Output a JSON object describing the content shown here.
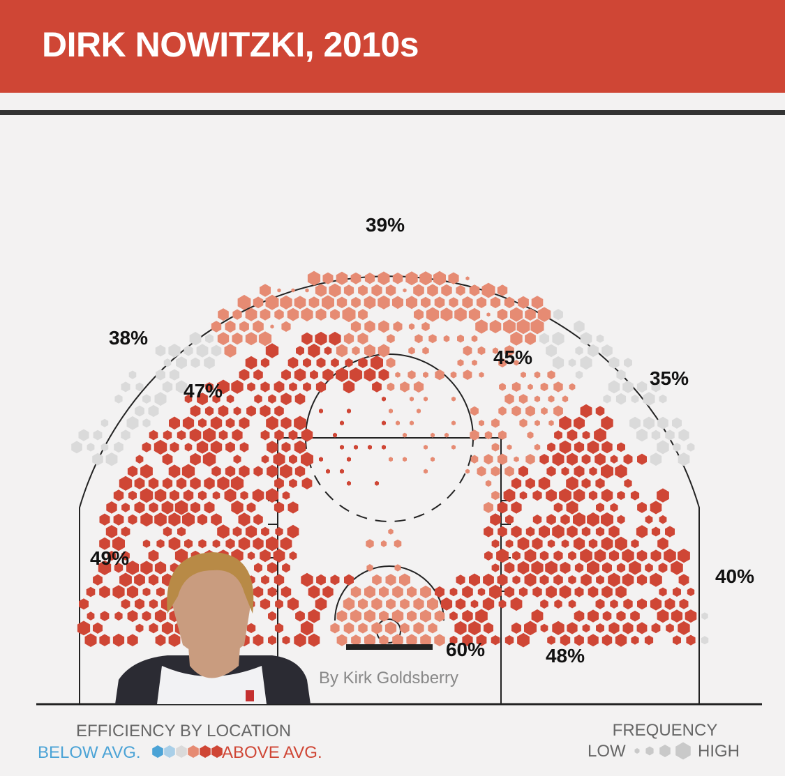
{
  "title": "DIRK NOWITZKI, 2010s",
  "credit": "By Kirk Goldsberry",
  "colors": {
    "header": "#cf4635",
    "rule": "#333333",
    "above_strong": "#cf4635",
    "above_mild": "#e68b73",
    "average": "#dadada",
    "below_mild": "#a9cfe8",
    "below_strong": "#4ba3d6"
  },
  "legend": {
    "efficiency_title": "EFFICIENCY BY LOCATION",
    "below_label": "BELOW AVG.",
    "above_label": "ABOVE AVG.",
    "frequency_title": "FREQUENCY",
    "low_label": "LOW",
    "high_label": "HIGH"
  },
  "chart_data": {
    "type": "heatmap",
    "subtype": "hexbin shot chart",
    "metric": "field goal percentage by zone",
    "zones": [
      {
        "zone": "above the break 3 (top)",
        "fg_pct": "39%"
      },
      {
        "zone": "left wing 3",
        "fg_pct": "38%"
      },
      {
        "zone": "right wing 3",
        "fg_pct": "35%"
      },
      {
        "zone": "right corner 3",
        "fg_pct": "40%"
      },
      {
        "zone": "left wing midrange",
        "fg_pct": "47%"
      },
      {
        "zone": "right elbow midrange",
        "fg_pct": "45%"
      },
      {
        "zone": "left baseline midrange",
        "fg_pct": "49%"
      },
      {
        "zone": "right baseline midrange",
        "fg_pct": "48%"
      },
      {
        "zone": "restricted area",
        "fg_pct": "60%"
      }
    ],
    "legend_scales": {
      "color": "below average to above average efficiency",
      "size": "low to high frequency"
    }
  }
}
